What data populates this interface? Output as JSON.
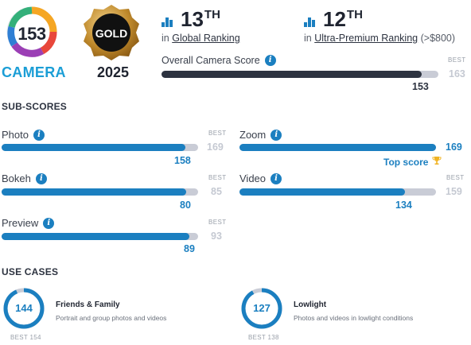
{
  "camera_badge": {
    "score": "153",
    "category": "CAMERA"
  },
  "medal": {
    "label": "GOLD",
    "year": "2025"
  },
  "rankings": [
    {
      "rank": "13",
      "suffix": "TH",
      "prefix": "in",
      "link": "Global Ranking",
      "extra": ""
    },
    {
      "rank": "12",
      "suffix": "TH",
      "prefix": "in",
      "link": "Ultra-Premium Ranking",
      "extra": "(>$800)"
    }
  ],
  "overall": {
    "label": "Overall Camera Score",
    "value": 153,
    "best_label": "BEST",
    "best": 163
  },
  "subscores": {
    "heading": "SUB-SCORES",
    "items": [
      {
        "label": "Photo",
        "value": 158,
        "best_label": "BEST",
        "best": 169
      },
      {
        "label": "Zoom",
        "value": 169,
        "best_label": "",
        "best": 169,
        "top_score_label": "Top score"
      },
      {
        "label": "Bokeh",
        "value": 80,
        "best_label": "BEST",
        "best": 85
      },
      {
        "label": "Video",
        "value": 134,
        "best_label": "BEST",
        "best": 159
      },
      {
        "label": "Preview",
        "value": 89,
        "best_label": "BEST",
        "best": 93
      }
    ]
  },
  "use_cases": {
    "heading": "USE CASES",
    "items": [
      {
        "value": "144",
        "title": "Friends & Family",
        "description": "Portrait and group photos and videos",
        "best_text": "BEST 154",
        "fraction": 0.935
      },
      {
        "value": "127",
        "title": "Lowlight",
        "description": "Photos and videos in lowlight conditions",
        "best_text": "BEST 138",
        "fraction": 0.92
      }
    ]
  },
  "icons": {
    "info": "info-icon",
    "ranking": "bar-chart-icon",
    "trophy": "trophy-icon"
  },
  "colors": {
    "accent": "#1b7fc0",
    "overall_fill": "#2d3340",
    "track": "#c9ccd6",
    "medal_gold": "#c08a2c",
    "camera_blue": "#1b9ed6"
  }
}
